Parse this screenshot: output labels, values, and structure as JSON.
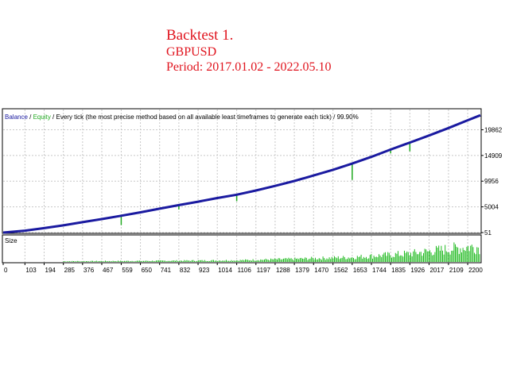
{
  "header": {
    "title": "Backtest 1.",
    "symbol": "GBPUSD",
    "period": "Period: 2017.01.02 - 2022.05.10"
  },
  "legend": {
    "balance": "Balance",
    "sep1": " / ",
    "equity": "Equity",
    "sep2": " / ",
    "desc": "Every tick (the most precise method based on all available least timeframes to generate each tick)",
    "sep3": " / ",
    "quality": "99.90%"
  },
  "colors": {
    "balance": "#1a1aa0",
    "equity": "#22aa22",
    "size_bars": "#22bb22",
    "grid": "#c8c8c8",
    "frame": "#000000"
  },
  "chart_data": [
    {
      "type": "line",
      "title": "",
      "series": [
        {
          "name": "Balance",
          "x": [
            0,
            103,
            194,
            285,
            376,
            467,
            559,
            650,
            741,
            832,
            923,
            1014,
            1106,
            1197,
            1288,
            1379,
            1470,
            1562,
            1653,
            1744,
            1835,
            1926,
            2017,
            2109,
            2200,
            2260
          ],
          "values": [
            51,
            420,
            900,
            1450,
            2050,
            2650,
            3300,
            3950,
            4650,
            5350,
            6000,
            6700,
            7350,
            8150,
            9050,
            10000,
            11050,
            12150,
            13350,
            14650,
            16050,
            17400,
            18750,
            20200,
            21700,
            22650
          ]
        },
        {
          "name": "Equity",
          "drawdowns": [
            {
              "x": 559,
              "value": 1500
            },
            {
              "x": 832,
              "value": 4500
            },
            {
              "x": 1106,
              "value": 6100
            },
            {
              "x": 1653,
              "value": 10200
            },
            {
              "x": 1835,
              "value": 15300
            },
            {
              "x": 1926,
              "value": 15700
            }
          ]
        }
      ],
      "ytick_labels": [
        "19862",
        "14909",
        "9956",
        "5004",
        "51"
      ],
      "ytick_values": [
        19862,
        14909,
        9956,
        5004,
        51
      ],
      "ylim": [
        51,
        23300
      ],
      "xlim": [
        0,
        2260
      ],
      "grid": true
    },
    {
      "type": "bar",
      "title": "Size",
      "xtick_labels": [
        "0",
        "103",
        "194",
        "285",
        "376",
        "467",
        "559",
        "650",
        "741",
        "832",
        "923",
        "1014",
        "1106",
        "1197",
        "1288",
        "1379",
        "1470",
        "1562",
        "1653",
        "1744",
        "1835",
        "1926",
        "2017",
        "2109",
        "2200"
      ],
      "xtick_values": [
        0,
        103,
        194,
        285,
        376,
        467,
        559,
        650,
        741,
        832,
        923,
        1014,
        1106,
        1197,
        1288,
        1379,
        1470,
        1562,
        1653,
        1744,
        1835,
        1926,
        2017,
        2109,
        2200
      ],
      "size_profile": [
        {
          "x": 0,
          "value": 0
        },
        {
          "x": 285,
          "value": 0.04
        },
        {
          "x": 650,
          "value": 0.06
        },
        {
          "x": 1106,
          "value": 0.1
        },
        {
          "x": 1379,
          "value": 0.18
        },
        {
          "x": 1653,
          "value": 0.28
        },
        {
          "x": 1926,
          "value": 0.5
        },
        {
          "x": 2200,
          "value": 0.9
        }
      ]
    }
  ]
}
